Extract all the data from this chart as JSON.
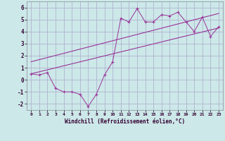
{
  "xlabel": "Windchill (Refroidissement éolien,°C)",
  "background_color": "#cce8e8",
  "grid_color": "#aaaacc",
  "line_color": "#993399",
  "x_ticks": [
    0,
    1,
    2,
    3,
    4,
    5,
    6,
    7,
    8,
    9,
    10,
    11,
    12,
    13,
    14,
    15,
    16,
    17,
    18,
    19,
    20,
    21,
    22,
    23
  ],
  "ylim": [
    -2.5,
    6.5
  ],
  "xlim": [
    -0.5,
    23.5
  ],
  "yticks": [
    -2,
    -1,
    0,
    1,
    2,
    3,
    4,
    5,
    6
  ],
  "line1_x": [
    0,
    1,
    2,
    3,
    4,
    5,
    6,
    7,
    8,
    9,
    10,
    11,
    12,
    13,
    14,
    15,
    16,
    17,
    18,
    19,
    20,
    21,
    22,
    23
  ],
  "line1_y": [
    0.5,
    0.4,
    0.6,
    -0.7,
    -1.0,
    -1.0,
    -1.2,
    -2.2,
    -1.2,
    0.4,
    1.5,
    5.1,
    4.8,
    5.9,
    4.8,
    4.8,
    5.4,
    5.3,
    5.6,
    4.8,
    4.0,
    5.2,
    3.6,
    4.4
  ],
  "line2_x": [
    0,
    23
  ],
  "line2_y": [
    1.5,
    5.5
  ],
  "line3_x": [
    0,
    23
  ],
  "line3_y": [
    0.5,
    4.3
  ]
}
